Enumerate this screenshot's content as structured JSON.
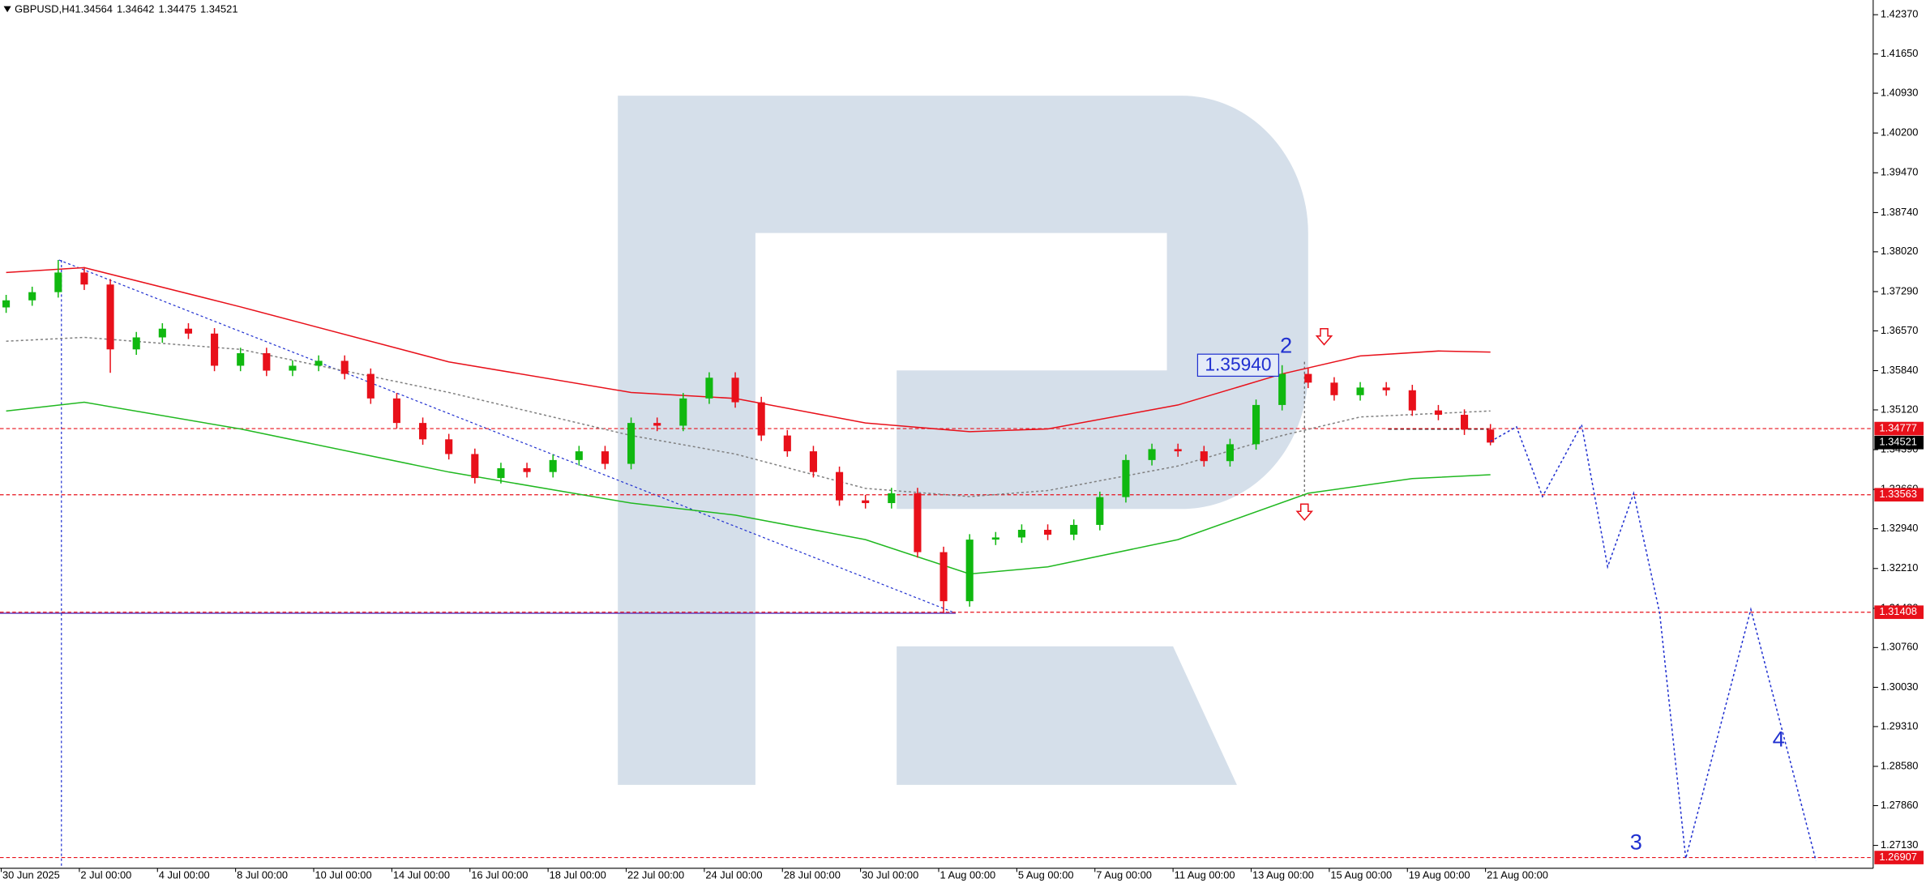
{
  "chart_data": {
    "type": "candlestick",
    "title": "GBPUSD,H4",
    "ohlc_header": [
      1.34564,
      1.34642,
      1.34475,
      1.34521
    ],
    "categories": [
      "30 Jun 2025",
      "2 Jul 00:00",
      "4 Jul 00:00",
      "8 Jul 00:00",
      "10 Jul 00:00",
      "14 Jul 00:00",
      "16 Jul 00:00",
      "18 Jul 00:00",
      "22 Jul 00:00",
      "24 Jul 00:00",
      "28 Jul 00:00",
      "30 Jul 00:00",
      "1 Aug 00:00",
      "5 Aug 00:00",
      "7 Aug 00:00",
      "11 Aug 00:00",
      "13 Aug 00:00",
      "15 Aug 00:00",
      "19 Aug 00:00",
      "21 Aug 00:00"
    ],
    "open": [
      1.37,
      1.3713,
      1.3728,
      1.3764,
      1.3742,
      1.3623,
      1.3645,
      1.3661,
      1.3652,
      1.3593,
      1.3616,
      1.3584,
      1.3593,
      1.3602,
      1.3578,
      1.3533,
      1.3488,
      1.3458,
      1.3431,
      1.3387,
      1.3405,
      1.3398,
      1.342,
      1.3436,
      1.3413,
      1.3488,
      1.3483,
      1.3533,
      1.3571,
      1.3526,
      1.3465,
      1.3436,
      1.3398,
      1.3346,
      1.3341,
      1.3359,
      1.3251,
      1.3161,
      1.3274,
      1.3278,
      1.3292,
      1.3283,
      1.3301,
      1.3352,
      1.342,
      1.344,
      1.3436,
      1.3418,
      1.3449,
      1.3521,
      1.3578,
      1.3562,
      1.3539,
      1.3553,
      1.3548,
      1.3511,
      1.3503,
      1.3476
    ],
    "high": [
      1.3723,
      1.3738,
      1.3787,
      1.3774,
      1.3752,
      1.3655,
      1.3671,
      1.3671,
      1.3662,
      1.3626,
      1.3626,
      1.3603,
      1.3612,
      1.3612,
      1.3588,
      1.3543,
      1.3498,
      1.3468,
      1.3441,
      1.3415,
      1.3415,
      1.343,
      1.3446,
      1.3446,
      1.3498,
      1.3498,
      1.3543,
      1.3581,
      1.3581,
      1.3536,
      1.3475,
      1.3446,
      1.3408,
      1.3356,
      1.3369,
      1.3369,
      1.3261,
      1.3284,
      1.3288,
      1.3302,
      1.3302,
      1.3311,
      1.3362,
      1.343,
      1.345,
      1.345,
      1.3446,
      1.3459,
      1.3531,
      1.3594,
      1.3588,
      1.3572,
      1.3563,
      1.3563,
      1.3558,
      1.3521,
      1.3513,
      1.3486
    ],
    "low": [
      1.369,
      1.3703,
      1.3718,
      1.3732,
      1.358,
      1.3613,
      1.3635,
      1.3642,
      1.3583,
      1.3583,
      1.3574,
      1.3574,
      1.3583,
      1.3568,
      1.3523,
      1.3478,
      1.3448,
      1.3421,
      1.3377,
      1.3377,
      1.3388,
      1.3388,
      1.341,
      1.3403,
      1.3403,
      1.3473,
      1.3473,
      1.3523,
      1.3516,
      1.3455,
      1.3426,
      1.3388,
      1.3336,
      1.3331,
      1.3331,
      1.3241,
      1.3139,
      1.3151,
      1.3264,
      1.3268,
      1.3273,
      1.3273,
      1.3291,
      1.3342,
      1.341,
      1.3426,
      1.3408,
      1.3408,
      1.3439,
      1.3511,
      1.3552,
      1.3529,
      1.3529,
      1.3538,
      1.3501,
      1.3493,
      1.3466,
      1.3447
    ],
    "close": [
      1.3713,
      1.3728,
      1.3764,
      1.3742,
      1.3623,
      1.3645,
      1.3661,
      1.3652,
      1.3593,
      1.3616,
      1.3584,
      1.3593,
      1.3602,
      1.3578,
      1.3533,
      1.3488,
      1.3458,
      1.3431,
      1.3387,
      1.3405,
      1.3398,
      1.342,
      1.3436,
      1.3413,
      1.3488,
      1.3483,
      1.3533,
      1.3571,
      1.3526,
      1.3465,
      1.3436,
      1.3398,
      1.3346,
      1.3341,
      1.3359,
      1.3251,
      1.3161,
      1.3274,
      1.3278,
      1.3292,
      1.3283,
      1.3301,
      1.3352,
      1.342,
      1.344,
      1.3436,
      1.3418,
      1.3449,
      1.3521,
      1.3578,
      1.3562,
      1.3539,
      1.3553,
      1.3548,
      1.3511,
      1.3503,
      1.3476,
      1.3452
    ],
    "up_color": "#10b810",
    "down_color": "#e8101a",
    "ylim": [
      1.2671,
      1.4264
    ],
    "yticks": [
      {
        "value": 1.4237,
        "label": "1.42370"
      },
      {
        "value": 1.4165,
        "label": "1.41650"
      },
      {
        "value": 1.4093,
        "label": "1.40930"
      },
      {
        "value": 1.402,
        "label": "1.40200"
      },
      {
        "value": 1.3947,
        "label": "1.39470"
      },
      {
        "value": 1.3874,
        "label": "1.38740"
      },
      {
        "value": 1.3802,
        "label": "1.38020"
      },
      {
        "value": 1.3729,
        "label": "1.37290"
      },
      {
        "value": 1.3657,
        "label": "1.36570"
      },
      {
        "value": 1.3584,
        "label": "1.35840"
      },
      {
        "value": 1.3512,
        "label": "1.35120"
      },
      {
        "value": 1.3439,
        "label": "1.34390"
      },
      {
        "value": 1.3366,
        "label": "1.33660"
      },
      {
        "value": 1.3294,
        "label": "1.32940"
      },
      {
        "value": 1.3221,
        "label": "1.32210"
      },
      {
        "value": 1.3148,
        "label": "1.31480"
      },
      {
        "value": 1.3076,
        "label": "1.30760"
      },
      {
        "value": 1.3003,
        "label": "1.30030"
      },
      {
        "value": 1.2931,
        "label": "1.29310"
      },
      {
        "value": 1.2858,
        "label": "1.28580"
      },
      {
        "value": 1.2786,
        "label": "1.27860"
      },
      {
        "value": 1.2713,
        "label": "1.27130"
      }
    ],
    "indicators": [
      {
        "x": [
          0,
          3,
          9,
          17,
          24,
          28,
          33,
          37,
          40,
          45,
          49,
          52,
          55,
          57
        ],
        "values": [
          1.3764,
          1.3773,
          1.3701,
          1.36,
          1.3544,
          1.3533,
          1.3488,
          1.3472,
          1.3477,
          1.3521,
          1.3578,
          1.3611,
          1.362,
          1.3618
        ],
        "color": "#e8101a",
        "style": "solid"
      },
      {
        "x": [
          0,
          3,
          9,
          17,
          24,
          28,
          33,
          37,
          40,
          45,
          50,
          54,
          57
        ],
        "values": [
          1.351,
          1.3526,
          1.3477,
          1.3398,
          1.3341,
          1.3319,
          1.3274,
          1.3211,
          1.3224,
          1.3274,
          1.3359,
          1.3386,
          1.3393
        ],
        "color": "#20b820",
        "style": "solid"
      },
      {
        "x": [
          0,
          3,
          9,
          17,
          24,
          28,
          33,
          37,
          40,
          45,
          49,
          52,
          57
        ],
        "values": [
          1.3638,
          1.3645,
          1.3623,
          1.3544,
          1.3465,
          1.3431,
          1.3368,
          1.3353,
          1.3364,
          1.3409,
          1.3465,
          1.3499,
          1.351
        ],
        "color": "#808080",
        "style": "dotted"
      }
    ],
    "forecast": {
      "x": [
        57,
        58,
        59,
        60.5,
        61.5,
        62.5,
        63.5,
        64.5,
        67,
        69.5
      ],
      "values": [
        1.3454,
        1.3481,
        1.3353,
        1.3485,
        1.3224,
        1.3359,
        1.3139,
        1.2689,
        1.3146,
        1.2685
      ],
      "color": "#2030d0",
      "style": "dotted"
    },
    "levels": [
      {
        "value": 1.34777,
        "color": "#e8101a"
      },
      {
        "value": 1.33563,
        "color": "#e8101a"
      },
      {
        "value": 1.31408,
        "color": "#e8101a"
      },
      {
        "value": 1.26907,
        "color": "#e8101a"
      }
    ],
    "current_price": {
      "value": 1.34521,
      "color": "#000000"
    },
    "price_marker": {
      "value": 1.3594,
      "label": "1.35940"
    },
    "wave_labels": [
      "2",
      "3",
      "4"
    ]
  }
}
